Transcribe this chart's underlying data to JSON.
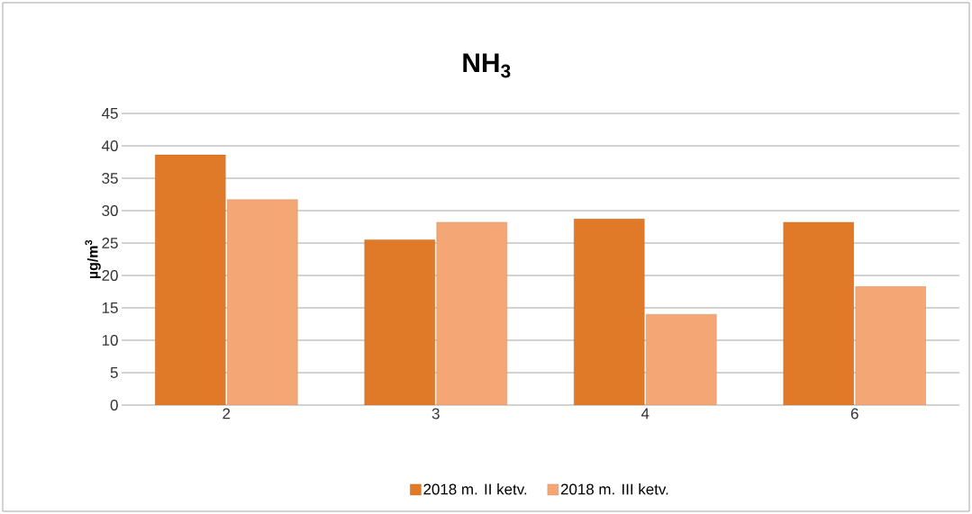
{
  "chart_data": {
    "type": "bar",
    "title": "NH$_{3}$",
    "ylabel": "µg/m$^{3}$",
    "categories": [
      "2",
      "3",
      "4",
      "6"
    ],
    "series": [
      {
        "name": "2018 m. II ketv.",
        "color": "#e07a28",
        "values": [
          38.6,
          25.5,
          28.7,
          28.2
        ]
      },
      {
        "name": "2018 m. III ketv.",
        "color": "#f4a775",
        "values": [
          31.7,
          28.2,
          14.0,
          18.3
        ]
      }
    ],
    "ylim": [
      0,
      45
    ],
    "yticks": [
      0,
      5,
      10,
      15,
      20,
      25,
      30,
      35,
      40,
      45
    ],
    "grid": "y",
    "legend": "bottom"
  }
}
